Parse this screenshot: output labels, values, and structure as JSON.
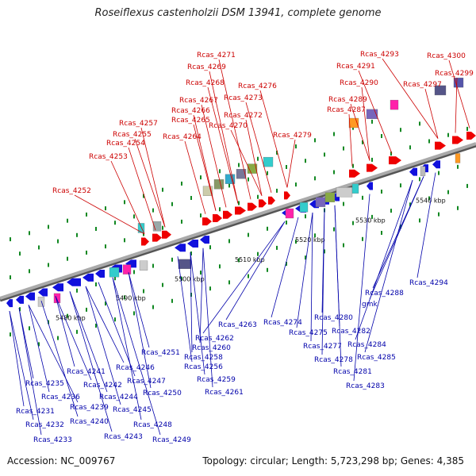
{
  "title": "Roseiflexus castenholzii DSM 13941, complete genome",
  "footer": {
    "accession": "Accession: NC_009767",
    "summary": "Topology: circular; Length: 5,723,298 bp; Genes: 4,385"
  },
  "colors": {
    "forward": "#ee0000",
    "reverse": "#1111dd",
    "top_label": "#cc0000",
    "bottom_label": "#0000aa",
    "axis": "#888888",
    "ticks": "#118822"
  },
  "kbp_labels": [
    {
      "text": "5480 kbp"
    },
    {
      "text": "5490 kbp"
    },
    {
      "text": "5500 kbp"
    },
    {
      "text": "5510 kbp"
    },
    {
      "text": "5520 kbp"
    },
    {
      "text": "5530 kbp"
    },
    {
      "text": "5540 kbp"
    }
  ],
  "top_genes": [
    "Rcas_4252",
    "Rcas_4253",
    "Rcas_4254",
    "Rcas_4255",
    "Rcas_4257",
    "Rcas_4264",
    "Rcas_4265",
    "Rcas_4266",
    "Rcas_4267",
    "Rcas_4268",
    "Rcas_4269",
    "Rcas_4271",
    "Rcas_4270",
    "Rcas_4272",
    "Rcas_4273",
    "Rcas_4276",
    "Rcas_4279",
    "Rcas_4287",
    "Rcas_4289",
    "Rcas_4290",
    "Rcas_4291",
    "Rcas_4293",
    "Rcas_4297",
    "Rcas_4299",
    "Rcas_4300"
  ],
  "bottom_genes": [
    "Rcas_4231",
    "Rcas_4232",
    "Rcas_4233",
    "Rcas_4235",
    "Rcas_4236",
    "Rcas_4239",
    "Rcas_4240",
    "Rcas_4241",
    "Rcas_4242",
    "Rcas_4243",
    "Rcas_4244",
    "Rcas_4245",
    "Rcas_4246",
    "Rcas_4247",
    "Rcas_4248",
    "Rcas_4249",
    "Rcas_4250",
    "Rcas_4251",
    "Rcas_4256",
    "Rcas_4258",
    "Rcas_4259",
    "Rcas_4260",
    "Rcas_4261",
    "Rcas_4262",
    "Rcas_4263",
    "Rcas_4274",
    "Rcas_4275",
    "Rcas_4277",
    "Rcas_4278",
    "Rcas_4280",
    "Rcas_4281",
    "Rcas_4282",
    "Rcas_4283",
    "Rcas_4284",
    "Rcas_4285",
    "Rcas_4288",
    "gmk",
    "Rcas_4294"
  ]
}
